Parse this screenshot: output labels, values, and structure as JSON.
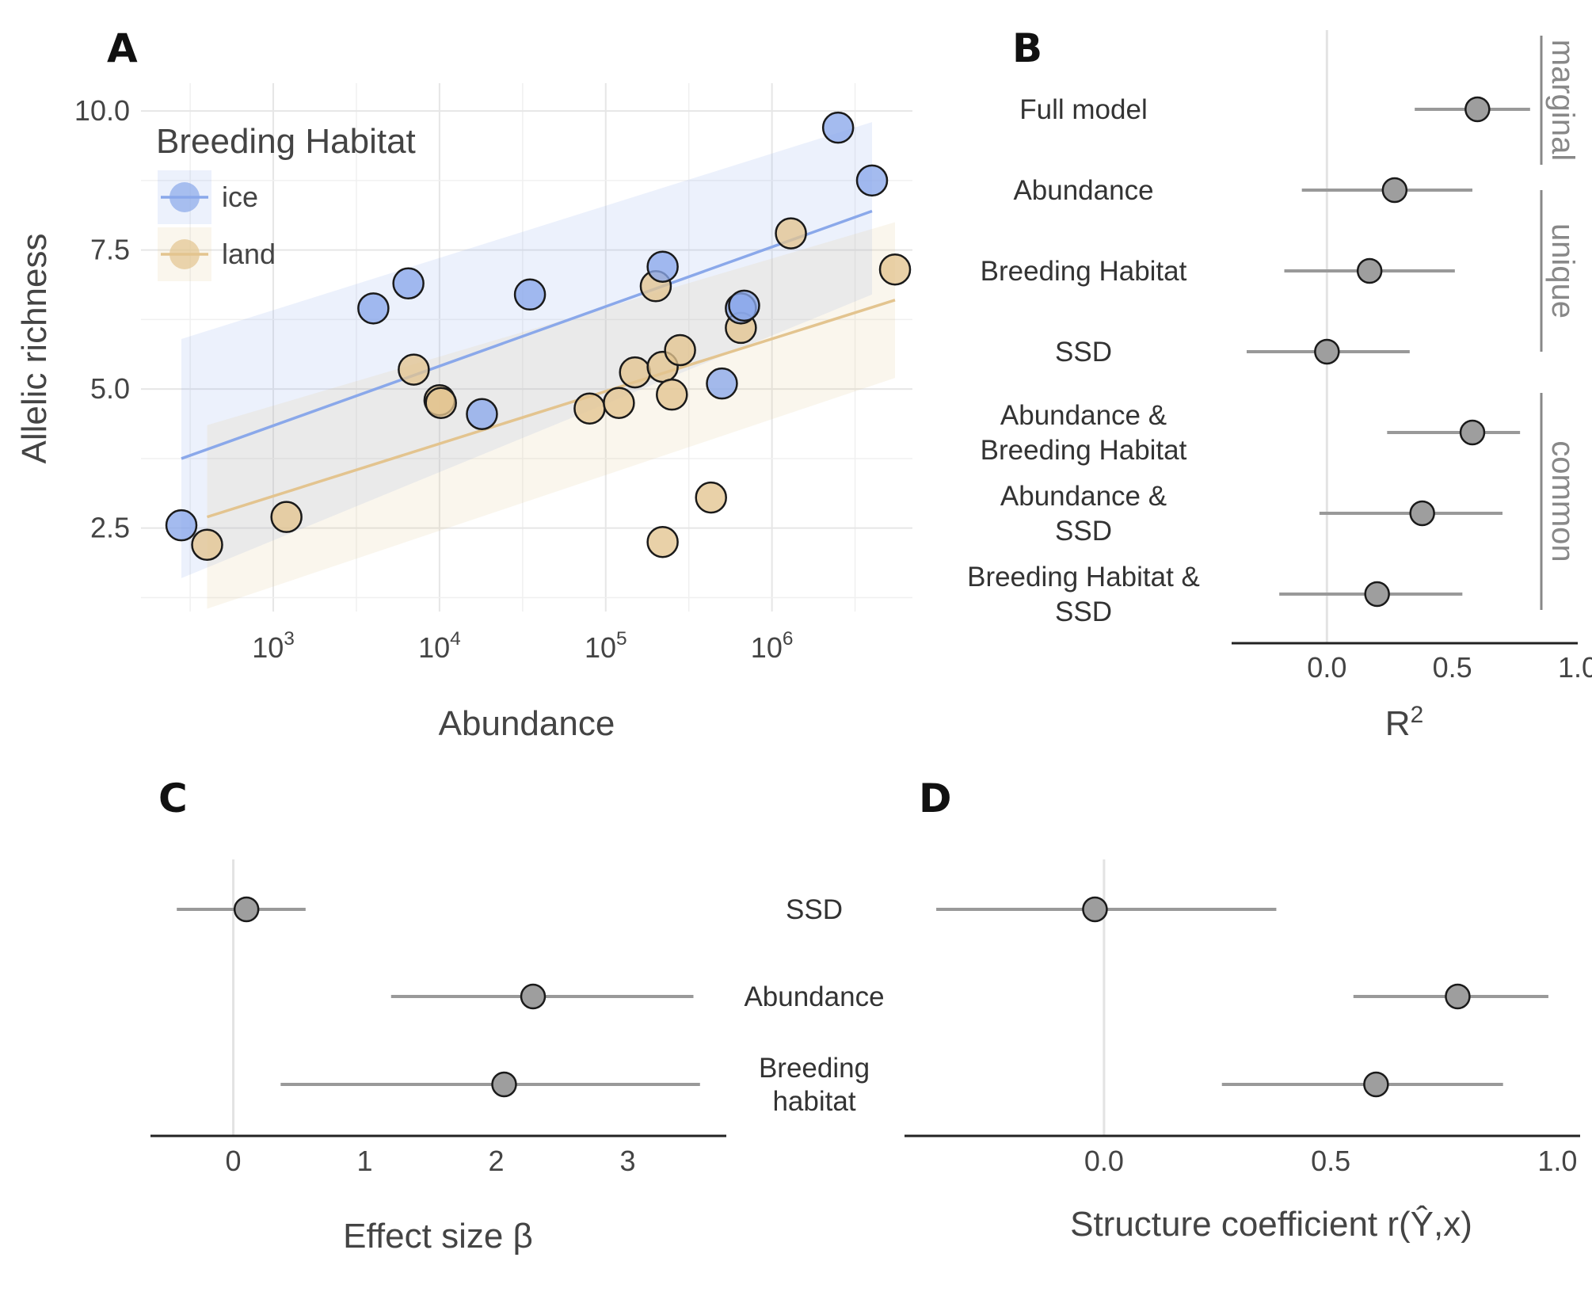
{
  "chart_data": [
    {
      "panel": "A",
      "type": "scatter",
      "xlabel": "Abundance",
      "ylabel": "Allelic richness",
      "x_scale": "log10",
      "xlim": [
        160,
        7000000
      ],
      "ylim": [
        1.0,
        10.5
      ],
      "x_ticks": [
        1000,
        10000,
        100000,
        1000000
      ],
      "x_tick_labels": [
        {
          "base": "10",
          "exp": "3"
        },
        {
          "base": "10",
          "exp": "4"
        },
        {
          "base": "10",
          "exp": "5"
        },
        {
          "base": "10",
          "exp": "6"
        }
      ],
      "y_ticks": [
        2.5,
        5.0,
        7.5,
        10.0
      ],
      "y_tick_labels": [
        "2.5",
        "5.0",
        "7.5",
        "10.0"
      ],
      "grid": true,
      "legend": {
        "title": "Breeding Habitat",
        "position": "top-left",
        "entries": [
          "ice",
          "land"
        ]
      },
      "series": [
        {
          "name": "ice",
          "color": "#8aa8ea",
          "points": [
            {
              "x": 280,
              "y": 2.55
            },
            {
              "x": 4000,
              "y": 6.45
            },
            {
              "x": 6500,
              "y": 6.9
            },
            {
              "x": 18000,
              "y": 4.55
            },
            {
              "x": 35000,
              "y": 6.7
            },
            {
              "x": 220000,
              "y": 7.2
            },
            {
              "x": 500000,
              "y": 5.1
            },
            {
              "x": 650000,
              "y": 6.45
            },
            {
              "x": 680000,
              "y": 6.5
            },
            {
              "x": 2500000,
              "y": 9.7
            },
            {
              "x": 4000000,
              "y": 8.75
            }
          ],
          "fit": {
            "x": [
              280,
              4000000
            ],
            "y": [
              3.75,
              8.2
            ]
          },
          "band": {
            "x": [
              280,
              4000000
            ],
            "lower": [
              1.6,
              6.7
            ],
            "upper": [
              5.9,
              9.8
            ]
          }
        },
        {
          "name": "land",
          "color": "#e3c48f",
          "points": [
            {
              "x": 400,
              "y": 2.2
            },
            {
              "x": 1200,
              "y": 2.7
            },
            {
              "x": 7000,
              "y": 5.35
            },
            {
              "x": 10000,
              "y": 4.8
            },
            {
              "x": 10200,
              "y": 4.75
            },
            {
              "x": 80000,
              "y": 4.65
            },
            {
              "x": 120000,
              "y": 4.75
            },
            {
              "x": 150000,
              "y": 5.3
            },
            {
              "x": 200000,
              "y": 6.85
            },
            {
              "x": 220000,
              "y": 5.4
            },
            {
              "x": 220000,
              "y": 2.25
            },
            {
              "x": 250000,
              "y": 4.9
            },
            {
              "x": 280000,
              "y": 5.7
            },
            {
              "x": 430000,
              "y": 3.05
            },
            {
              "x": 650000,
              "y": 6.1
            },
            {
              "x": 1300000,
              "y": 7.8
            },
            {
              "x": 5500000,
              "y": 7.15
            }
          ],
          "fit": {
            "x": [
              400,
              5500000
            ],
            "y": [
              2.7,
              6.6
            ]
          },
          "band": {
            "x": [
              400,
              5500000
            ],
            "lower": [
              1.05,
              5.2
            ],
            "upper": [
              4.35,
              8.0
            ]
          }
        }
      ]
    },
    {
      "panel": "B",
      "type": "dot-interval",
      "xlabel": {
        "base": "R",
        "sup": "2"
      },
      "xlim": [
        -0.38,
        1.0
      ],
      "x_ticks": [
        0.0,
        0.5,
        1.0
      ],
      "x_tick_labels": [
        "0.0",
        "0.5",
        "1.0"
      ],
      "items": [
        {
          "label": [
            "Full model"
          ],
          "value": 0.6,
          "lower": 0.35,
          "upper": 0.81
        },
        {
          "label": [
            "Abundance"
          ],
          "value": 0.27,
          "lower": -0.1,
          "upper": 0.58
        },
        {
          "label": [
            "Breeding Habitat"
          ],
          "value": 0.17,
          "lower": -0.17,
          "upper": 0.51
        },
        {
          "label": [
            "SSD"
          ],
          "value": 0.0,
          "lower": -0.32,
          "upper": 0.33
        },
        {
          "label": [
            "Abundance &",
            "Breeding Habitat"
          ],
          "value": 0.58,
          "lower": 0.24,
          "upper": 0.77
        },
        {
          "label": [
            "Abundance &",
            "SSD"
          ],
          "value": 0.38,
          "lower": -0.03,
          "upper": 0.7
        },
        {
          "label": [
            "Breeding Habitat &",
            "SSD"
          ],
          "value": 0.2,
          "lower": -0.19,
          "upper": 0.54
        }
      ],
      "groups": [
        {
          "label": "marginal",
          "from": 0,
          "to": 0
        },
        {
          "label": "unique",
          "from": 1,
          "to": 3
        },
        {
          "label": "common",
          "from": 4,
          "to": 6
        }
      ]
    },
    {
      "panel": "C",
      "type": "dot-interval",
      "xlabel": "Effect size β",
      "xlim": [
        -0.63,
        3.75
      ],
      "x_ticks": [
        0,
        1,
        2,
        3
      ],
      "x_tick_labels": [
        "0",
        "1",
        "2",
        "3"
      ],
      "items": [
        {
          "value": 0.1,
          "lower": -0.43,
          "upper": 0.55
        },
        {
          "value": 2.28,
          "lower": 1.2,
          "upper": 3.5
        },
        {
          "value": 2.06,
          "lower": 0.36,
          "upper": 3.55
        }
      ]
    },
    {
      "panel": "D",
      "type": "dot-interval",
      "xlabel": "Structure coefficient r(Ŷ,x)",
      "xlim": [
        -0.44,
        1.05
      ],
      "x_ticks": [
        0.0,
        0.5,
        1.0
      ],
      "x_tick_labels": [
        "0.0",
        "0.5",
        "1.0"
      ],
      "items": [
        {
          "value": -0.02,
          "lower": -0.37,
          "upper": 0.38
        },
        {
          "value": 0.78,
          "lower": 0.55,
          "upper": 0.98
        },
        {
          "value": 0.6,
          "lower": 0.26,
          "upper": 0.88
        }
      ]
    }
  ],
  "shared_labels_CD": [
    [
      "SSD"
    ],
    [
      "Abundance"
    ],
    [
      "Breeding",
      "habitat"
    ]
  ],
  "colors": {
    "ice": "#8aa8ea",
    "land": "#e3c48f",
    "point_gray": "#9e9e9e",
    "interval": "#999999"
  }
}
